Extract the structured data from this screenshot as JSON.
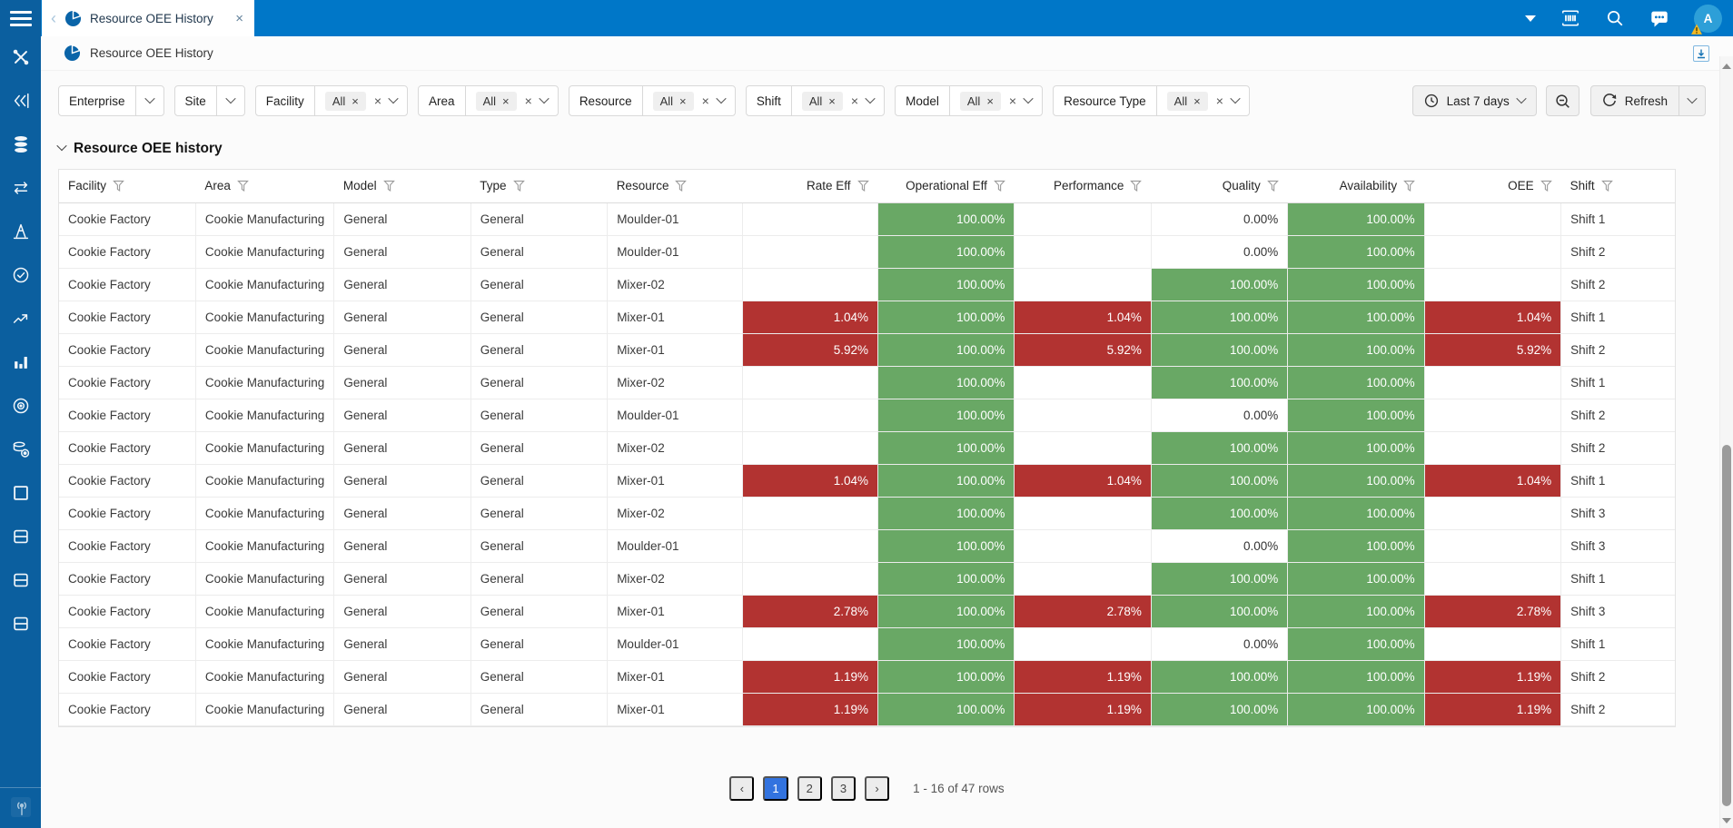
{
  "topbar": {
    "tab_title": "Resource OEE History",
    "icons": [
      "caret-down-icon",
      "barcode-scan-icon",
      "search-icon",
      "chat-icon"
    ],
    "avatar_letter": "A",
    "avatar_badge": "warning-triangle"
  },
  "pagehead": {
    "title": "Resource OEE History",
    "corner_icon": "download-icon"
  },
  "sidebar": {
    "icons": [
      "tools",
      "flow",
      "database",
      "swap",
      "cone",
      "gauge",
      "trend",
      "bar-chart",
      "target",
      "database-gear",
      "window",
      "panel",
      "panel",
      "panel"
    ],
    "bottom_icon": "antenna"
  },
  "filterbar": {
    "filters": [
      {
        "label": "Enterprise",
        "chip": null
      },
      {
        "label": "Site",
        "chip": null
      },
      {
        "label": "Facility",
        "chip": "All"
      },
      {
        "label": "Area",
        "chip": "All"
      },
      {
        "label": "Resource",
        "chip": "All"
      },
      {
        "label": "Shift",
        "chip": "All"
      },
      {
        "label": "Model",
        "chip": "All"
      },
      {
        "label": "Resource Type",
        "chip": "All"
      }
    ],
    "time_range_label": "Last 7 days",
    "refresh_label": "Refresh"
  },
  "section": {
    "title": "Resource OEE history"
  },
  "table": {
    "columns": [
      {
        "label": "Facility",
        "numeric": false
      },
      {
        "label": "Area",
        "numeric": false
      },
      {
        "label": "Model",
        "numeric": false
      },
      {
        "label": "Type",
        "numeric": false
      },
      {
        "label": "Resource",
        "numeric": false
      },
      {
        "label": "Rate Eff",
        "numeric": true
      },
      {
        "label": "Operational Eff",
        "numeric": true
      },
      {
        "label": "Performance",
        "numeric": true
      },
      {
        "label": "Quality",
        "numeric": true
      },
      {
        "label": "Availability",
        "numeric": true
      },
      {
        "label": "OEE",
        "numeric": true
      },
      {
        "label": "Shift",
        "numeric": false
      }
    ],
    "rows": [
      {
        "facility": "Cookie Factory",
        "area": "Cookie Manufacturing",
        "model": "General",
        "type": "General",
        "resource": "Moulder-01",
        "metrics": [
          [
            "",
            ""
          ],
          [
            "100.00%",
            "green"
          ],
          [
            "",
            ""
          ],
          [
            "0.00%",
            "plain"
          ],
          [
            "100.00%",
            "green"
          ],
          [
            "",
            ""
          ]
        ],
        "shift": "Shift 1"
      },
      {
        "facility": "Cookie Factory",
        "area": "Cookie Manufacturing",
        "model": "General",
        "type": "General",
        "resource": "Moulder-01",
        "metrics": [
          [
            "",
            ""
          ],
          [
            "100.00%",
            "green"
          ],
          [
            "",
            ""
          ],
          [
            "0.00%",
            "plain"
          ],
          [
            "100.00%",
            "green"
          ],
          [
            "",
            ""
          ]
        ],
        "shift": "Shift 2"
      },
      {
        "facility": "Cookie Factory",
        "area": "Cookie Manufacturing",
        "model": "General",
        "type": "General",
        "resource": "Mixer-02",
        "metrics": [
          [
            "",
            ""
          ],
          [
            "100.00%",
            "green"
          ],
          [
            "",
            ""
          ],
          [
            "100.00%",
            "green"
          ],
          [
            "100.00%",
            "green"
          ],
          [
            "",
            ""
          ]
        ],
        "shift": "Shift 2"
      },
      {
        "facility": "Cookie Factory",
        "area": "Cookie Manufacturing",
        "model": "General",
        "type": "General",
        "resource": "Mixer-01",
        "metrics": [
          [
            "1.04%",
            "red"
          ],
          [
            "100.00%",
            "green"
          ],
          [
            "1.04%",
            "red"
          ],
          [
            "100.00%",
            "green"
          ],
          [
            "100.00%",
            "green"
          ],
          [
            "1.04%",
            "red"
          ]
        ],
        "shift": "Shift 1"
      },
      {
        "facility": "Cookie Factory",
        "area": "Cookie Manufacturing",
        "model": "General",
        "type": "General",
        "resource": "Mixer-01",
        "metrics": [
          [
            "5.92%",
            "red"
          ],
          [
            "100.00%",
            "green"
          ],
          [
            "5.92%",
            "red"
          ],
          [
            "100.00%",
            "green"
          ],
          [
            "100.00%",
            "green"
          ],
          [
            "5.92%",
            "red"
          ]
        ],
        "shift": "Shift 2"
      },
      {
        "facility": "Cookie Factory",
        "area": "Cookie Manufacturing",
        "model": "General",
        "type": "General",
        "resource": "Mixer-02",
        "metrics": [
          [
            "",
            ""
          ],
          [
            "100.00%",
            "green"
          ],
          [
            "",
            ""
          ],
          [
            "100.00%",
            "green"
          ],
          [
            "100.00%",
            "green"
          ],
          [
            "",
            ""
          ]
        ],
        "shift": "Shift 1"
      },
      {
        "facility": "Cookie Factory",
        "area": "Cookie Manufacturing",
        "model": "General",
        "type": "General",
        "resource": "Moulder-01",
        "metrics": [
          [
            "",
            ""
          ],
          [
            "100.00%",
            "green"
          ],
          [
            "",
            ""
          ],
          [
            "0.00%",
            "plain"
          ],
          [
            "100.00%",
            "green"
          ],
          [
            "",
            ""
          ]
        ],
        "shift": "Shift 2"
      },
      {
        "facility": "Cookie Factory",
        "area": "Cookie Manufacturing",
        "model": "General",
        "type": "General",
        "resource": "Mixer-02",
        "metrics": [
          [
            "",
            ""
          ],
          [
            "100.00%",
            "green"
          ],
          [
            "",
            ""
          ],
          [
            "100.00%",
            "green"
          ],
          [
            "100.00%",
            "green"
          ],
          [
            "",
            ""
          ]
        ],
        "shift": "Shift 2"
      },
      {
        "facility": "Cookie Factory",
        "area": "Cookie Manufacturing",
        "model": "General",
        "type": "General",
        "resource": "Mixer-01",
        "metrics": [
          [
            "1.04%",
            "red"
          ],
          [
            "100.00%",
            "green"
          ],
          [
            "1.04%",
            "red"
          ],
          [
            "100.00%",
            "green"
          ],
          [
            "100.00%",
            "green"
          ],
          [
            "1.04%",
            "red"
          ]
        ],
        "shift": "Shift 1"
      },
      {
        "facility": "Cookie Factory",
        "area": "Cookie Manufacturing",
        "model": "General",
        "type": "General",
        "resource": "Mixer-02",
        "metrics": [
          [
            "",
            ""
          ],
          [
            "100.00%",
            "green"
          ],
          [
            "",
            ""
          ],
          [
            "100.00%",
            "green"
          ],
          [
            "100.00%",
            "green"
          ],
          [
            "",
            ""
          ]
        ],
        "shift": "Shift 3"
      },
      {
        "facility": "Cookie Factory",
        "area": "Cookie Manufacturing",
        "model": "General",
        "type": "General",
        "resource": "Moulder-01",
        "metrics": [
          [
            "",
            ""
          ],
          [
            "100.00%",
            "green"
          ],
          [
            "",
            ""
          ],
          [
            "0.00%",
            "plain"
          ],
          [
            "100.00%",
            "green"
          ],
          [
            "",
            ""
          ]
        ],
        "shift": "Shift 3"
      },
      {
        "facility": "Cookie Factory",
        "area": "Cookie Manufacturing",
        "model": "General",
        "type": "General",
        "resource": "Mixer-02",
        "metrics": [
          [
            "",
            ""
          ],
          [
            "100.00%",
            "green"
          ],
          [
            "",
            ""
          ],
          [
            "100.00%",
            "green"
          ],
          [
            "100.00%",
            "green"
          ],
          [
            "",
            ""
          ]
        ],
        "shift": "Shift 1"
      },
      {
        "facility": "Cookie Factory",
        "area": "Cookie Manufacturing",
        "model": "General",
        "type": "General",
        "resource": "Mixer-01",
        "metrics": [
          [
            "2.78%",
            "red"
          ],
          [
            "100.00%",
            "green"
          ],
          [
            "2.78%",
            "red"
          ],
          [
            "100.00%",
            "green"
          ],
          [
            "100.00%",
            "green"
          ],
          [
            "2.78%",
            "red"
          ]
        ],
        "shift": "Shift 3"
      },
      {
        "facility": "Cookie Factory",
        "area": "Cookie Manufacturing",
        "model": "General",
        "type": "General",
        "resource": "Moulder-01",
        "metrics": [
          [
            "",
            ""
          ],
          [
            "100.00%",
            "green"
          ],
          [
            "",
            ""
          ],
          [
            "0.00%",
            "plain"
          ],
          [
            "100.00%",
            "green"
          ],
          [
            "",
            ""
          ]
        ],
        "shift": "Shift 1"
      },
      {
        "facility": "Cookie Factory",
        "area": "Cookie Manufacturing",
        "model": "General",
        "type": "General",
        "resource": "Mixer-01",
        "metrics": [
          [
            "1.19%",
            "red"
          ],
          [
            "100.00%",
            "green"
          ],
          [
            "1.19%",
            "red"
          ],
          [
            "100.00%",
            "green"
          ],
          [
            "100.00%",
            "green"
          ],
          [
            "1.19%",
            "red"
          ]
        ],
        "shift": "Shift 2"
      },
      {
        "facility": "Cookie Factory",
        "area": "Cookie Manufacturing",
        "model": "General",
        "type": "General",
        "resource": "Mixer-01",
        "metrics": [
          [
            "1.19%",
            "red"
          ],
          [
            "100.00%",
            "green"
          ],
          [
            "1.19%",
            "red"
          ],
          [
            "100.00%",
            "green"
          ],
          [
            "100.00%",
            "green"
          ],
          [
            "1.19%",
            "red"
          ]
        ],
        "shift": "Shift 2"
      }
    ]
  },
  "pagination": {
    "pages": [
      "1",
      "2",
      "3"
    ],
    "active": "1",
    "summary": "1 - 16 of 47 rows"
  },
  "colors": {
    "green_cell": "#69a865",
    "red_cell": "#b23331",
    "topbar_blue": "#0077c8",
    "sidebar_blue": "#0b5f9f",
    "pagination_active_blue": "#3273df",
    "avatar_blue": "#2d9fd8",
    "warning_yellow": "#f2b824"
  }
}
